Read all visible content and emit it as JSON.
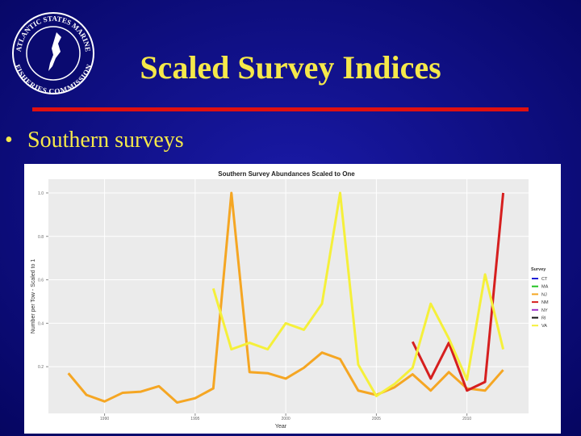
{
  "slide": {
    "title": "Scaled Survey Indices",
    "bullet": "Southern surveys",
    "logo": {
      "top": "ATLANTIC STATES MARINE",
      "bottom": "FISHERIES COMMISSION"
    }
  },
  "chart_data": {
    "type": "line",
    "title": "Southern Survey Abundances Scaled to One",
    "x_label": "Year",
    "y_label": "Number per Tow - Scaled to 1",
    "legend_title": "Survey",
    "x": [
      1988,
      1989,
      1990,
      1991,
      1992,
      1993,
      1994,
      1995,
      1996,
      1997,
      1998,
      1999,
      2000,
      2001,
      2002,
      2003,
      2004,
      2005,
      2006,
      2007,
      2008,
      2009,
      2010,
      2011,
      2012
    ],
    "series": [
      {
        "name": "CT",
        "color": "#1f1fd6",
        "values": [
          null,
          null,
          null,
          null,
          null,
          null,
          null,
          null,
          null,
          null,
          null,
          null,
          null,
          null,
          null,
          null,
          null,
          null,
          null,
          null,
          null,
          null,
          null,
          null,
          null
        ]
      },
      {
        "name": "MA",
        "color": "#22c322",
        "values": [
          null,
          null,
          null,
          null,
          null,
          null,
          null,
          null,
          null,
          null,
          null,
          null,
          null,
          null,
          null,
          null,
          null,
          null,
          null,
          null,
          null,
          null,
          null,
          null,
          null
        ]
      },
      {
        "name": "NJ",
        "color": "#f5a623",
        "values": [
          0.17,
          0.07,
          0.04,
          0.08,
          0.085,
          0.11,
          0.035,
          0.055,
          0.1,
          1.0,
          0.175,
          0.17,
          0.145,
          0.195,
          0.265,
          0.235,
          0.09,
          0.07,
          0.105,
          0.165,
          0.09,
          0.175,
          0.1,
          0.09,
          0.185
        ]
      },
      {
        "name": "NM",
        "color": "#d61f1f",
        "values": [
          null,
          null,
          null,
          null,
          null,
          null,
          null,
          null,
          null,
          null,
          null,
          null,
          null,
          null,
          null,
          null,
          null,
          null,
          null,
          0.315,
          0.145,
          0.31,
          0.09,
          0.13,
          1.0
        ]
      },
      {
        "name": "NY",
        "color": "#9b30c8",
        "values": [
          null,
          null,
          null,
          null,
          null,
          null,
          null,
          null,
          null,
          null,
          null,
          null,
          null,
          null,
          null,
          null,
          null,
          null,
          null,
          null,
          null,
          null,
          null,
          null,
          null
        ]
      },
      {
        "name": "RI",
        "color": "#111111",
        "values": [
          null,
          null,
          null,
          null,
          null,
          null,
          null,
          null,
          null,
          null,
          null,
          null,
          null,
          null,
          null,
          null,
          null,
          null,
          null,
          null,
          null,
          null,
          null,
          null,
          null
        ]
      },
      {
        "name": "VA",
        "color": "#f5f03a",
        "values": [
          null,
          null,
          null,
          null,
          null,
          null,
          null,
          null,
          0.56,
          0.28,
          0.31,
          0.28,
          0.4,
          0.37,
          0.49,
          1.0,
          0.21,
          0.065,
          0.12,
          0.195,
          0.49,
          0.33,
          0.14,
          0.625,
          0.28
        ]
      }
    ],
    "xlim": [
      1986.9,
      2013.4
    ],
    "xticks": [
      1990,
      1995,
      2000,
      2005,
      2010
    ],
    "ylim": [
      -0.015,
      1.063
    ],
    "yticks": [
      {
        "value": 1,
        "label": "1.0"
      },
      0.8,
      0.6,
      0.4,
      0.2
    ],
    "grid": true
  }
}
